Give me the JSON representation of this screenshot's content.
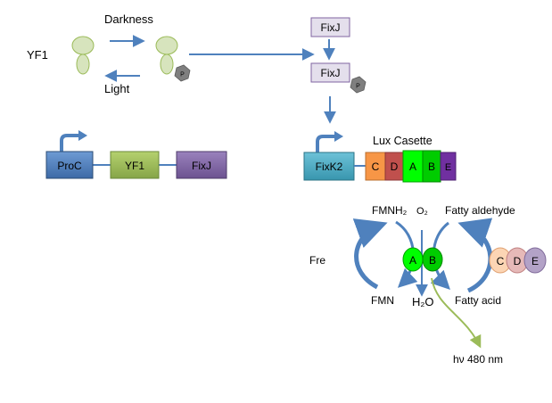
{
  "colors": {
    "arrow": "#4f81bd",
    "protein_fill": "#d7e4bd",
    "protein_stroke": "#9bbb59",
    "phospho_fill": "#7f7f7f",
    "fixj_fill": "#e4dfec",
    "fixj_stroke": "#8064a2",
    "proc_fill": "#4f81bd",
    "yf1_fill": "#9bbb59",
    "fixj_gene_fill": "#8064a2",
    "fixk2_fill": "#4bacc6",
    "lux_c": "#f79646",
    "lux_d": "#c0504d",
    "lux_a": "#00ff00",
    "lux_b": "#00cc00",
    "lux_e": "#7030a0",
    "circle_c": "#fcd5b4",
    "circle_d": "#e6b9b8",
    "circle_e": "#b3a2c7",
    "photon_arrow": "#9bbb59"
  },
  "light_switch": {
    "protein_label": "YF1",
    "darkness_label": "Darkness",
    "light_label": "Light",
    "phospho_label": "P"
  },
  "fixj_pathway": {
    "fixj_top": "FixJ",
    "fixj_phos": "FixJ",
    "phospho_label": "P"
  },
  "construct1": {
    "genes": [
      "ProC",
      "YF1",
      "FixJ"
    ]
  },
  "construct2": {
    "promoter": "FixK2",
    "lux_title": "Lux Casette",
    "lux_genes": [
      "C",
      "D",
      "A",
      "B",
      "E"
    ]
  },
  "reaction": {
    "enzyme_fre": "Fre",
    "fmnh2": "FMNH₂",
    "fmn": "FMN",
    "o2": "O₂",
    "h2o": "H₂O",
    "fatty_aldehyde": "Fatty aldehyde",
    "fatty_acid": "Fatty acid",
    "subunit_a": "A",
    "subunit_b": "B",
    "helpers": [
      "C",
      "D",
      "E"
    ],
    "emission": "hν  480 nm"
  }
}
